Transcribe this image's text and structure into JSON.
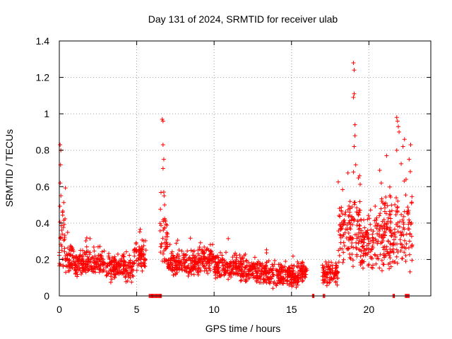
{
  "chart_data": {
    "type": "scatter",
    "title": "Day 131 of 2024, SRMTID for receiver ulab",
    "xlabel": "GPS time / hours",
    "ylabel": "SRMTID / TECUs",
    "xlim": [
      0,
      24
    ],
    "ylim": [
      0,
      1.4
    ],
    "x_ticks": [
      0,
      5,
      10,
      15,
      20
    ],
    "x_tick_labels": [
      "0",
      "5",
      "10",
      "15",
      "20"
    ],
    "y_ticks": [
      0,
      0.2,
      0.4,
      0.6,
      0.8,
      1,
      1.2,
      1.4
    ],
    "y_tick_labels": [
      "0",
      "0.2",
      "0.4",
      "0.6",
      "0.8",
      "1",
      "1.2",
      "1.4"
    ],
    "grid": true,
    "marker": "+",
    "marker_color": "#ff0000",
    "series": [
      {
        "name": "SRMTID",
        "segments": [
          {
            "x_start": 0.0,
            "x_end": 0.4,
            "baseline": 0.35,
            "spread": 0.3
          },
          {
            "x_start": 0.4,
            "x_end": 1.0,
            "baseline": 0.2,
            "spread": 0.12
          },
          {
            "x_start": 1.0,
            "x_end": 3.0,
            "baseline": 0.18,
            "spread": 0.1
          },
          {
            "x_start": 3.0,
            "x_end": 4.8,
            "baseline": 0.15,
            "spread": 0.1
          },
          {
            "x_start": 4.8,
            "x_end": 5.6,
            "baseline": 0.22,
            "spread": 0.12
          },
          {
            "x_start": 6.5,
            "x_end": 7.0,
            "baseline": 0.3,
            "spread": 0.2
          },
          {
            "x_start": 7.0,
            "x_end": 9.0,
            "baseline": 0.18,
            "spread": 0.1
          },
          {
            "x_start": 9.0,
            "x_end": 10.0,
            "baseline": 0.2,
            "spread": 0.1
          },
          {
            "x_start": 10.0,
            "x_end": 12.0,
            "baseline": 0.16,
            "spread": 0.1
          },
          {
            "x_start": 12.0,
            "x_end": 13.5,
            "baseline": 0.13,
            "spread": 0.09
          },
          {
            "x_start": 13.5,
            "x_end": 15.5,
            "baseline": 0.11,
            "spread": 0.1
          },
          {
            "x_start": 15.5,
            "x_end": 16.0,
            "baseline": 0.13,
            "spread": 0.08
          },
          {
            "x_start": 17.0,
            "x_end": 18.0,
            "baseline": 0.12,
            "spread": 0.1
          },
          {
            "x_start": 18.0,
            "x_end": 19.5,
            "baseline": 0.35,
            "spread": 0.25
          },
          {
            "x_start": 19.5,
            "x_end": 20.5,
            "baseline": 0.28,
            "spread": 0.2
          },
          {
            "x_start": 20.5,
            "x_end": 22.8,
            "baseline": 0.35,
            "spread": 0.3
          }
        ],
        "peaks": [
          {
            "x": 0.05,
            "y": 0.83
          },
          {
            "x": 0.1,
            "y": 0.8
          },
          {
            "x": 0.08,
            "y": 0.72
          },
          {
            "x": 0.06,
            "y": 0.62
          },
          {
            "x": 0.1,
            "y": 0.55
          },
          {
            "x": 6.65,
            "y": 0.97
          },
          {
            "x": 6.7,
            "y": 0.96
          },
          {
            "x": 6.7,
            "y": 0.83
          },
          {
            "x": 6.75,
            "y": 0.75
          },
          {
            "x": 6.7,
            "y": 0.7
          },
          {
            "x": 6.75,
            "y": 0.57
          },
          {
            "x": 6.8,
            "y": 0.5
          },
          {
            "x": 6.85,
            "y": 0.41
          },
          {
            "x": 19.0,
            "y": 1.28
          },
          {
            "x": 19.05,
            "y": 1.24
          },
          {
            "x": 19.05,
            "y": 1.11
          },
          {
            "x": 19.0,
            "y": 1.09
          },
          {
            "x": 19.1,
            "y": 0.94
          },
          {
            "x": 19.1,
            "y": 0.88
          },
          {
            "x": 19.05,
            "y": 0.82
          },
          {
            "x": 19.15,
            "y": 0.72
          },
          {
            "x": 19.0,
            "y": 0.68
          },
          {
            "x": 21.8,
            "y": 0.98
          },
          {
            "x": 21.85,
            "y": 0.96
          },
          {
            "x": 21.9,
            "y": 0.93
          },
          {
            "x": 21.95,
            "y": 0.9
          },
          {
            "x": 21.8,
            "y": 0.8
          },
          {
            "x": 22.3,
            "y": 0.86
          },
          {
            "x": 22.2,
            "y": 0.82
          },
          {
            "x": 22.7,
            "y": 0.83
          },
          {
            "x": 22.6,
            "y": 0.75
          },
          {
            "x": 20.7,
            "y": 0.69
          },
          {
            "x": 20.8,
            "y": 0.62
          },
          {
            "x": 19.4,
            "y": 0.66
          },
          {
            "x": 22.4,
            "y": 0.64
          }
        ],
        "zero_runs": [
          {
            "x_start": 5.8,
            "x_end": 6.6
          },
          {
            "x_start": 16.35,
            "x_end": 16.45
          },
          {
            "x_start": 17.05,
            "x_end": 17.15
          },
          {
            "x_start": 21.55,
            "x_end": 21.65
          },
          {
            "x_start": 22.35,
            "x_end": 22.6
          }
        ]
      }
    ]
  }
}
